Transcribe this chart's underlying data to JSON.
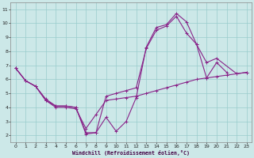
{
  "xlabel": "Windchill (Refroidissement éolien,°C)",
  "xlim": [
    -0.5,
    23.5
  ],
  "ylim": [
    1.5,
    11.5
  ],
  "yticks": [
    2,
    3,
    4,
    5,
    6,
    7,
    8,
    9,
    10,
    11
  ],
  "xticks": [
    0,
    1,
    2,
    3,
    4,
    5,
    6,
    7,
    8,
    9,
    10,
    11,
    12,
    13,
    14,
    15,
    16,
    17,
    18,
    19,
    20,
    21,
    22,
    23
  ],
  "background_color": "#cce8e8",
  "grid_color": "#99cccc",
  "line_color": "#882288",
  "line1_x": [
    0,
    1,
    2,
    3,
    4,
    5,
    6,
    7,
    8,
    9,
    10,
    11,
    12,
    13,
    14,
    15,
    16,
    17,
    18,
    19,
    20,
    21
  ],
  "line1_y": [
    6.8,
    5.9,
    5.5,
    4.6,
    4.1,
    4.1,
    4.0,
    2.1,
    2.2,
    3.3,
    2.3,
    3.0,
    4.7,
    8.3,
    9.7,
    9.9,
    10.7,
    10.1,
    8.5,
    6.1,
    7.2,
    6.5
  ],
  "line2_x": [
    0,
    1,
    2,
    3,
    4,
    5,
    6,
    7,
    8,
    9,
    10,
    11,
    12,
    13,
    14,
    15,
    16,
    17,
    18,
    19,
    20,
    21,
    22,
    23
  ],
  "line2_y": [
    6.8,
    5.9,
    5.5,
    4.5,
    4.0,
    4.0,
    3.9,
    2.5,
    3.5,
    4.5,
    4.6,
    4.7,
    4.8,
    5.0,
    5.2,
    5.4,
    5.6,
    5.8,
    6.0,
    6.1,
    6.2,
    6.3,
    6.4,
    6.5
  ],
  "line3_x": [
    0,
    1,
    2,
    3,
    4,
    5,
    6,
    7,
    8,
    9,
    10,
    11,
    12,
    13,
    14,
    15,
    16,
    17,
    18,
    19,
    20,
    22,
    23
  ],
  "line3_y": [
    6.8,
    5.9,
    5.5,
    4.5,
    4.1,
    4.1,
    4.0,
    2.2,
    2.2,
    4.8,
    5.0,
    5.2,
    5.4,
    8.2,
    9.5,
    9.8,
    10.5,
    9.3,
    8.5,
    7.2,
    7.5,
    6.4,
    6.5
  ]
}
